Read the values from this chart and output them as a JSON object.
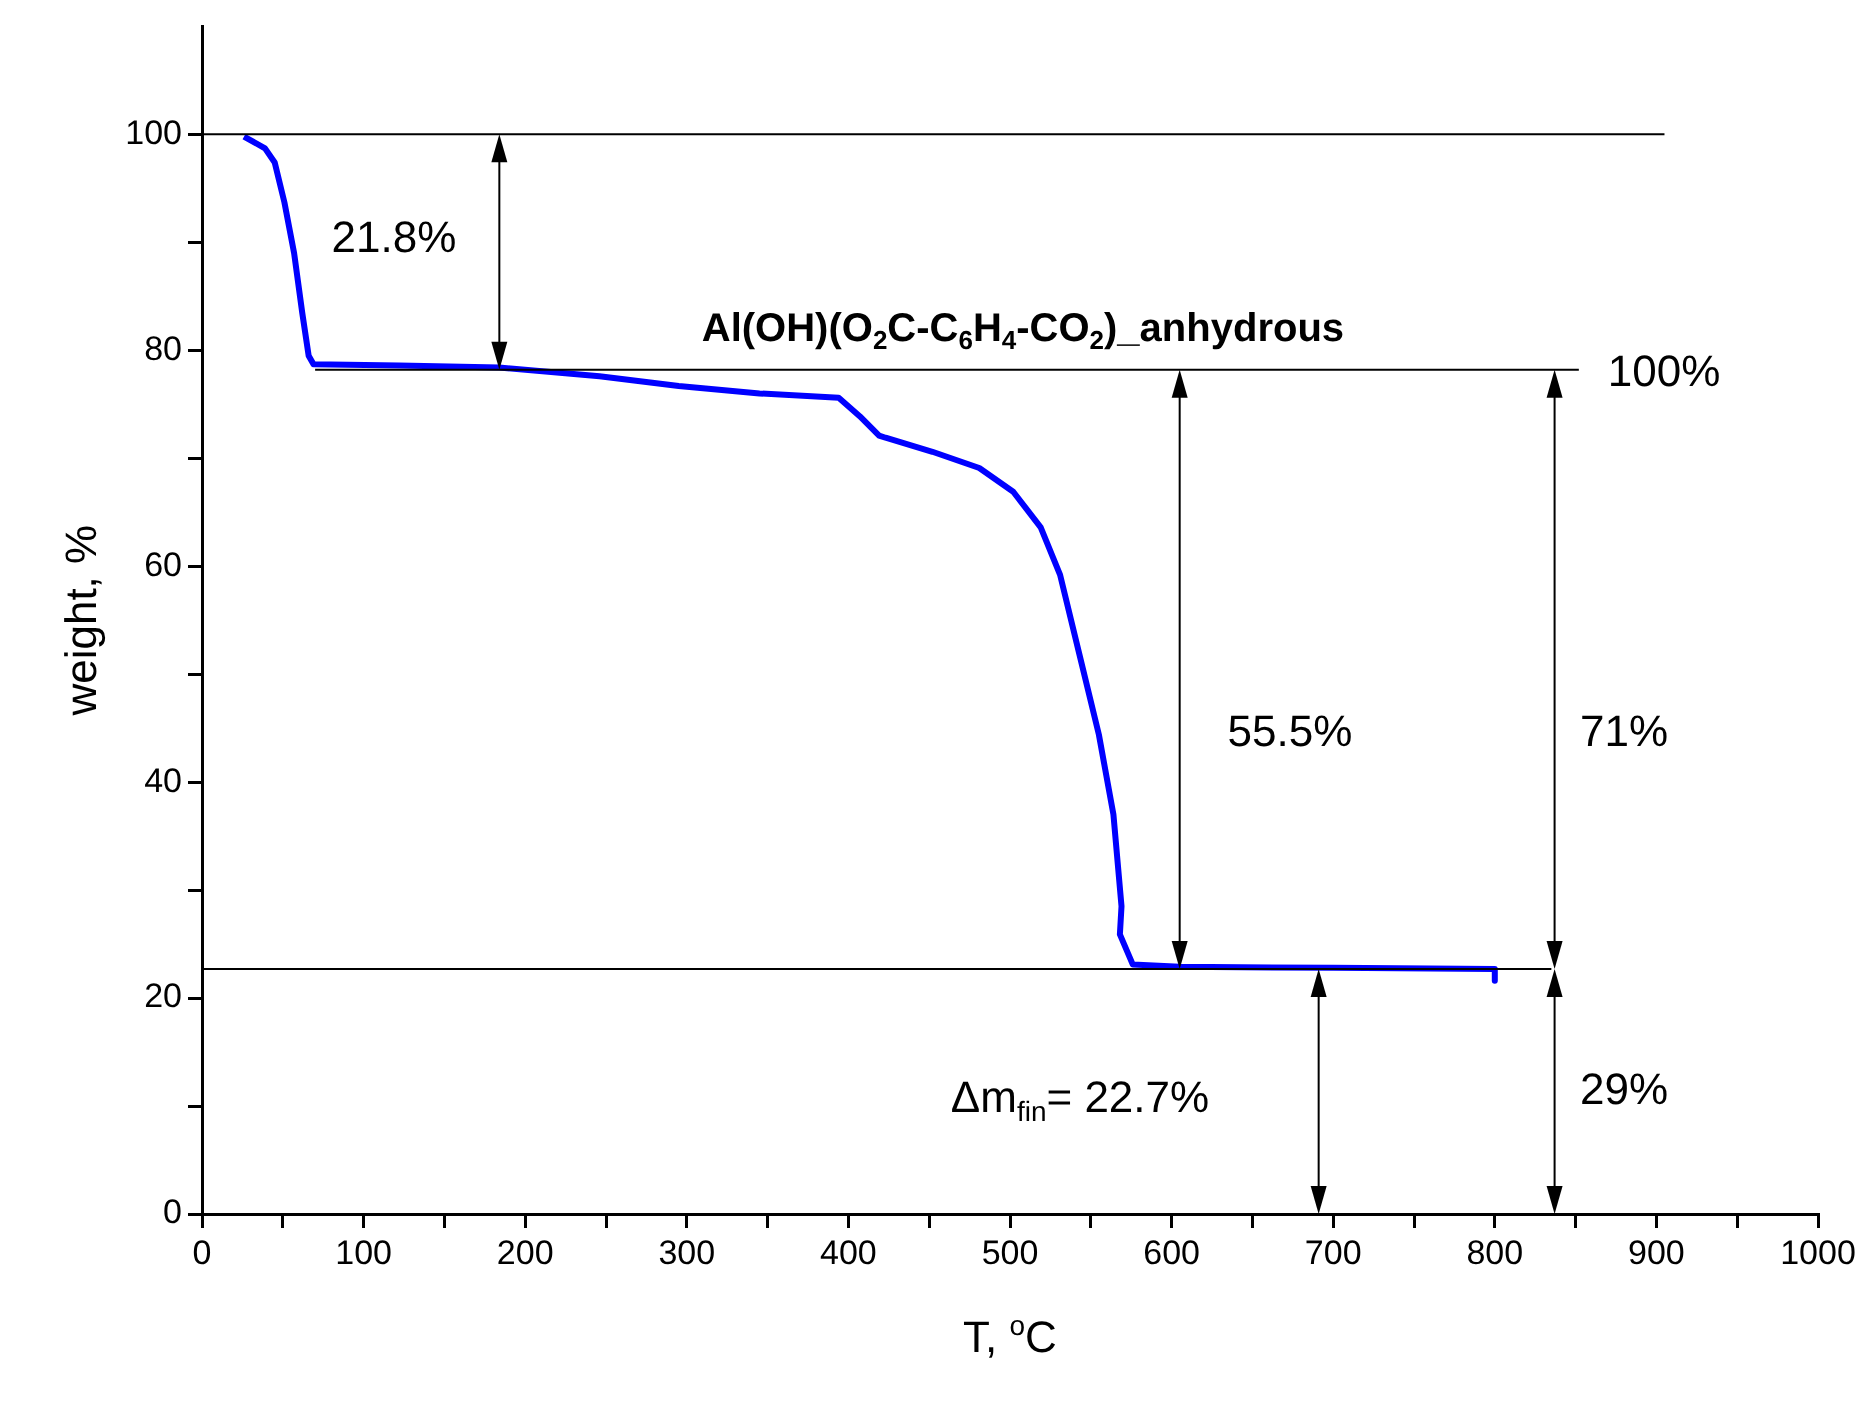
{
  "chart_data": {
    "type": "line",
    "title": "Al(OH)(O$_{2}$C-C$_{6}$H$_{4}$-CO$_{2}$)_anhydrous",
    "xlabel": "T, $^{o}$C",
    "ylabel": "weight, %",
    "series": [
      {
        "color": "#0000ff",
        "x": [
          26,
          39,
          45,
          51,
          57,
          62,
          66,
          69,
          122,
          184,
          246,
          295,
          345,
          394,
          407,
          419,
          423,
          452,
          481,
          502,
          519,
          531,
          543,
          555,
          564,
          569,
          568,
          576,
          605,
          700,
          800,
          800
        ],
        "values": [
          99.8,
          98.7,
          97.4,
          93.7,
          89,
          83.5,
          79.5,
          78.7,
          78.6,
          78.4,
          77.6,
          76.7,
          76.0,
          75.6,
          73.9,
          72.1,
          71.9,
          70.6,
          69.1,
          66.9,
          63.6,
          59.2,
          51.8,
          44.4,
          37.0,
          28.5,
          25.9,
          23.1,
          22.9,
          22.8,
          22.7,
          21.6
        ]
      }
    ],
    "xlim": [
      0,
      1000
    ],
    "ylim": [
      0,
      110
    ],
    "xticks": [
      0,
      {
        "value": 50,
        "label": null
      },
      100,
      {
        "value": 150,
        "label": null
      },
      200,
      {
        "value": 250,
        "label": null
      },
      300,
      {
        "value": 350,
        "label": null
      },
      400,
      {
        "value": 450,
        "label": null
      },
      500,
      {
        "value": 550,
        "label": null
      },
      600,
      {
        "value": 650,
        "label": null
      },
      700,
      {
        "value": 750,
        "label": null
      },
      800,
      {
        "value": 850,
        "label": null
      },
      900,
      {
        "value": 950,
        "label": null
      },
      1000
    ],
    "yticks": [
      0,
      {
        "value": 10,
        "label": null
      },
      20,
      {
        "value": 30,
        "label": null
      },
      40,
      {
        "value": 50,
        "label": null
      },
      60,
      {
        "value": 70,
        "label": null
      },
      80,
      {
        "value": 90,
        "label": null
      },
      100
    ],
    "ref_lines": [
      {
        "axis": "y",
        "value": 100,
        "color": "#000000"
      },
      {
        "axis": "y",
        "value": 78.2,
        "color": "#000000"
      },
      {
        "axis": "y",
        "value": 22.7,
        "color": "#000000"
      }
    ],
    "annotations": [
      "21.8%",
      "100%",
      "55.5%",
      "71%",
      "Δm$_{fin}$= 22.7%",
      "29%"
    ],
    "grid": false,
    "legend": false,
    "marker": "none",
    "line_style": "solid"
  }
}
